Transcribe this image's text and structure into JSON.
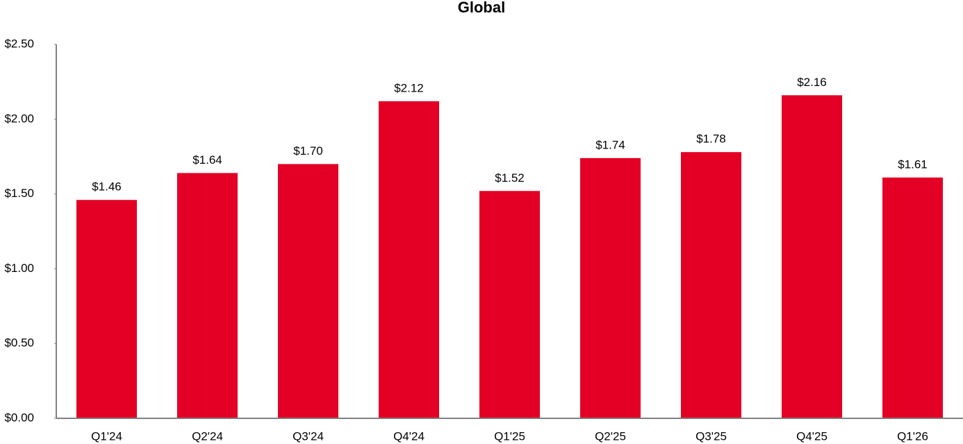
{
  "chart_data": {
    "type": "bar",
    "title": "Global",
    "categories": [
      "Q1'24",
      "Q2'24",
      "Q3'24",
      "Q4'24",
      "Q1'25",
      "Q2'25",
      "Q3'25",
      "Q4'25",
      "Q1'26"
    ],
    "values": [
      1.46,
      1.64,
      1.7,
      2.12,
      1.52,
      1.74,
      1.78,
      2.16,
      1.61
    ],
    "value_labels": [
      "$1.46",
      "$1.64",
      "$1.70",
      "$2.12",
      "$1.52",
      "$1.74",
      "$1.78",
      "$2.16",
      "$1.61"
    ],
    "color": "#e30024",
    "ylim": [
      0,
      2.5
    ],
    "yticks": [
      {
        "value": 0,
        "label": "$0.00"
      },
      {
        "value": 0.5,
        "label": "$0.50"
      },
      {
        "value": 1,
        "label": "$1.00"
      },
      {
        "value": 1.5,
        "label": "$1.50"
      },
      {
        "value": 2,
        "label": "$2.00"
      },
      {
        "value": 2.5,
        "label": "$2.50"
      }
    ],
    "grid": false
  }
}
